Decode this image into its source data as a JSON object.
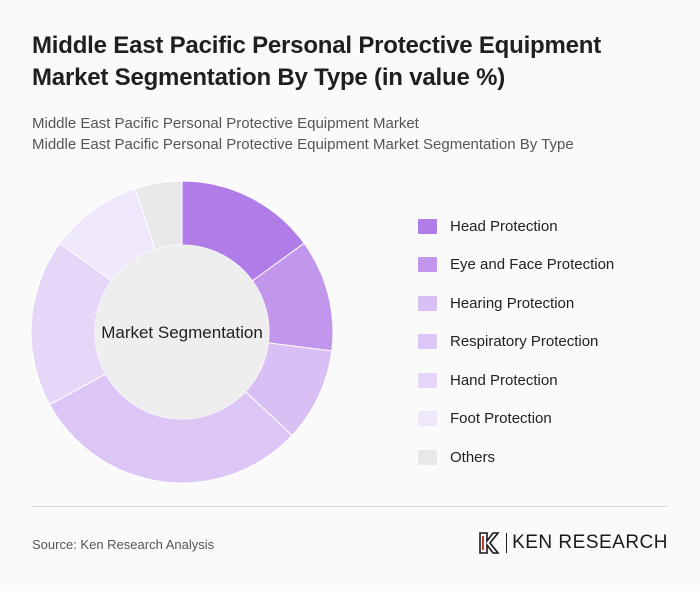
{
  "header": {
    "title": "Middle East Pacific Personal Protective Equipment Market Segmentation By Type (in value %)",
    "subtitle_line1": "Middle East Pacific Personal Protective Equipment Market",
    "subtitle_line2": "Middle East Pacific Personal Protective Equipment Market Segmentation By Type"
  },
  "chart_data": {
    "type": "pie",
    "variant": "donut",
    "center_label": "Market Segmentation",
    "categories": [
      "Head Protection",
      "Eye and Face Protection",
      "Hearing Protection",
      "Respiratory Protection",
      "Hand Protection",
      "Foot Protection",
      "Others"
    ],
    "values": [
      15,
      12,
      10,
      30,
      18,
      10,
      5
    ],
    "colors": [
      "#b07ce8",
      "#c296ec",
      "#d8bff4",
      "#dcc6f6",
      "#e6d7f8",
      "#efe8fa",
      "#e8e8e8"
    ],
    "legend_position": "right"
  },
  "footer": {
    "source": "Source: Ken Research Analysis",
    "logo_text": "KEN RESEARCH"
  }
}
